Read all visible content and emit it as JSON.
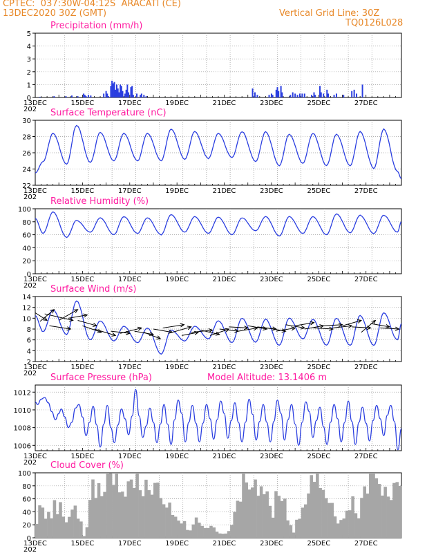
{
  "header": {
    "line1": "CPTEC:  037:30W-04:12S  ARACATI (CE)",
    "line2": "13DEC2020 30Z (GMT)",
    "grid_note": "Vertical Grid Line: 30Z",
    "run_id": "TQ0126L028"
  },
  "colors": {
    "header": "#e8892a",
    "panel_title": "#ff1aa0",
    "series": "#2a3ee0",
    "cloud": "#a6a6a6",
    "grid": "#999999"
  },
  "x_tick_labels": [
    "13DEC",
    "15DEC",
    "17DEC",
    "19DEC",
    "21DEC",
    "23DEC",
    "25DEC",
    "27DEC"
  ],
  "x_corner_label": "202",
  "chart_data": [
    {
      "type": "bar",
      "title": "Precipitation (mm/h)",
      "ylim": [
        0,
        5
      ],
      "y_ticks": [
        0,
        1,
        2,
        3,
        4,
        5
      ],
      "x_range_days": [
        13,
        28.5
      ],
      "bars": [
        [
          13.2,
          0.05
        ],
        [
          13.8,
          0.1
        ],
        [
          14.3,
          0.1
        ],
        [
          14.55,
          0.15
        ],
        [
          14.8,
          0.1
        ],
        [
          15.05,
          0.3
        ],
        [
          15.1,
          0.2
        ],
        [
          15.15,
          0.1
        ],
        [
          15.25,
          0.2
        ],
        [
          15.35,
          0.15
        ],
        [
          15.9,
          0.3
        ],
        [
          16.0,
          0.5
        ],
        [
          16.05,
          0.3
        ],
        [
          16.1,
          0.1
        ],
        [
          16.2,
          0.9
        ],
        [
          16.25,
          1.3
        ],
        [
          16.3,
          1.1
        ],
        [
          16.35,
          1.2
        ],
        [
          16.4,
          0.6
        ],
        [
          16.45,
          1.0
        ],
        [
          16.5,
          0.7
        ],
        [
          16.55,
          0.4
        ],
        [
          16.6,
          1.0
        ],
        [
          16.65,
          0.9
        ],
        [
          16.7,
          0.5
        ],
        [
          16.8,
          0.3
        ],
        [
          16.85,
          0.6
        ],
        [
          16.9,
          1.0
        ],
        [
          16.95,
          0.4
        ],
        [
          17.05,
          0.8
        ],
        [
          17.1,
          0.9
        ],
        [
          17.15,
          0.2
        ],
        [
          17.3,
          0.3
        ],
        [
          17.45,
          0.2
        ],
        [
          17.5,
          0.3
        ],
        [
          17.6,
          0.2
        ],
        [
          17.7,
          0.1
        ],
        [
          22.2,
          0.7
        ],
        [
          22.3,
          0.4
        ],
        [
          22.4,
          0.2
        ],
        [
          22.9,
          0.2
        ],
        [
          23.0,
          0.3
        ],
        [
          23.05,
          0.2
        ],
        [
          23.2,
          0.6
        ],
        [
          23.25,
          0.8
        ],
        [
          23.3,
          0.5
        ],
        [
          23.4,
          0.9
        ],
        [
          23.45,
          0.4
        ],
        [
          23.8,
          0.2
        ],
        [
          23.9,
          0.4
        ],
        [
          24.0,
          0.3
        ],
        [
          24.1,
          0.2
        ],
        [
          24.2,
          0.3
        ],
        [
          24.3,
          0.3
        ],
        [
          24.4,
          0.3
        ],
        [
          24.7,
          0.2
        ],
        [
          24.8,
          0.4
        ],
        [
          24.85,
          0.2
        ],
        [
          25.05,
          0.9
        ],
        [
          25.1,
          0.4
        ],
        [
          25.2,
          0.3
        ],
        [
          25.35,
          0.6
        ],
        [
          25.4,
          0.3
        ],
        [
          25.65,
          0.2
        ],
        [
          25.75,
          0.3
        ],
        [
          26.05,
          0.2
        ],
        [
          26.4,
          0.5
        ],
        [
          26.5,
          0.6
        ],
        [
          26.6,
          0.3
        ],
        [
          26.85,
          1.0
        ]
      ]
    },
    {
      "type": "line",
      "title": "Surface Temperature (nC)",
      "ylim": [
        22,
        30
      ],
      "y_ticks": [
        22,
        24,
        26,
        28,
        30
      ],
      "x_range_days": [
        13,
        28.5
      ],
      "min_start": 23.5,
      "min_end": 22.8,
      "daily_min": [
        24.9,
        24.6,
        24.8,
        25.0,
        25.0,
        25.0,
        25.2,
        25.3,
        25.4,
        24.9,
        24.4,
        24.7,
        24.4,
        24.4,
        24.1,
        23.7
      ],
      "daily_max": [
        28.4,
        29.4,
        28.5,
        28.4,
        28.4,
        28.9,
        28.6,
        28.4,
        28.6,
        28.6,
        28.3,
        28.4,
        28.3,
        28.6,
        28.9,
        28.7
      ]
    },
    {
      "type": "line",
      "title": "Relative Humidity (%)",
      "ylim": [
        0,
        100
      ],
      "y_ticks": [
        0,
        20,
        40,
        60,
        80,
        100
      ],
      "x_range_days": [
        13,
        28.5
      ],
      "min_start": 85,
      "min_end": 80,
      "daily_max": [
        95,
        82,
        86,
        88,
        86,
        91,
        88,
        87,
        86,
        88,
        88,
        88,
        92,
        90,
        90,
        90
      ],
      "daily_min": [
        62,
        56,
        64,
        60,
        62,
        60,
        64,
        62,
        60,
        66,
        58,
        62,
        60,
        63,
        62,
        64
      ]
    },
    {
      "type": "line",
      "title": "Surface Wind (m/s)",
      "ylim": [
        2,
        14
      ],
      "y_ticks": [
        2,
        4,
        6,
        8,
        10,
        12,
        14
      ],
      "x_range_days": [
        13,
        28.5
      ],
      "min_start": 10.5,
      "min_end": 9.0,
      "daily_max": [
        11.5,
        13.2,
        9.5,
        8.5,
        8.2,
        7.8,
        8.5,
        9.5,
        10.0,
        9.8,
        10.0,
        9.8,
        10.0,
        10.5,
        11.0,
        10.8
      ],
      "daily_min": [
        7.5,
        7.0,
        6.0,
        5.8,
        5.5,
        3.4,
        5.8,
        6.2,
        5.5,
        5.6,
        5.0,
        6.2,
        5.0,
        5.0,
        5.0,
        6.0
      ],
      "arrows": [
        [
          13.0,
          11.0,
          13.5,
          9.6
        ],
        [
          13.2,
          9.4,
          13.8,
          11.6
        ],
        [
          13.4,
          10.8,
          14.6,
          9.6
        ],
        [
          13.6,
          8.6,
          14.5,
          8.0
        ],
        [
          14.0,
          9.6,
          14.8,
          11.6
        ],
        [
          14.4,
          10.0,
          15.2,
          10.6
        ],
        [
          14.8,
          9.6,
          15.6,
          8.6
        ],
        [
          15.0,
          8.6,
          15.8,
          7.4
        ],
        [
          15.5,
          8.0,
          16.4,
          6.8
        ],
        [
          16.2,
          7.6,
          17.0,
          7.2
        ],
        [
          16.6,
          7.2,
          17.5,
          8.2
        ],
        [
          17.2,
          7.6,
          18.0,
          7.0
        ],
        [
          17.6,
          7.4,
          18.3,
          6.2
        ],
        [
          18.0,
          8.0,
          18.8,
          7.4
        ],
        [
          18.4,
          8.2,
          19.3,
          8.8
        ],
        [
          18.8,
          7.4,
          19.6,
          8.4
        ],
        [
          19.2,
          6.8,
          19.9,
          7.4
        ],
        [
          19.6,
          7.4,
          20.5,
          7.8
        ],
        [
          20.0,
          7.8,
          20.8,
          7.0
        ],
        [
          20.4,
          6.8,
          21.2,
          8.0
        ],
        [
          20.8,
          8.0,
          21.6,
          7.6
        ],
        [
          21.2,
          8.4,
          22.0,
          8.2
        ],
        [
          21.6,
          7.6,
          22.4,
          8.2
        ],
        [
          22.0,
          8.6,
          22.8,
          8.0
        ],
        [
          22.4,
          8.4,
          23.2,
          8.0
        ],
        [
          22.8,
          8.2,
          23.6,
          7.6
        ],
        [
          23.2,
          7.6,
          24.0,
          8.2
        ],
        [
          23.6,
          8.8,
          24.4,
          8.2
        ],
        [
          24.0,
          8.6,
          24.8,
          9.2
        ],
        [
          24.4,
          8.0,
          25.2,
          8.6
        ],
        [
          24.8,
          8.2,
          25.6,
          8.0
        ],
        [
          25.2,
          8.6,
          26.0,
          8.8
        ],
        [
          25.6,
          8.2,
          26.4,
          8.6
        ],
        [
          26.0,
          8.6,
          26.8,
          9.6
        ],
        [
          26.4,
          8.4,
          27.2,
          8.2
        ],
        [
          26.8,
          7.4,
          27.4,
          9.6
        ],
        [
          27.2,
          9.0,
          28.0,
          8.4
        ],
        [
          27.6,
          8.2,
          28.4,
          8.0
        ]
      ]
    },
    {
      "type": "line",
      "title": "Surface Pressure (hPa)",
      "annotation": "Model Altitude: 13.1406  m",
      "ylim": [
        1005.4,
        1012.8
      ],
      "y_ticks": [
        1006,
        1008,
        1010,
        1012
      ],
      "x_range_days": [
        13,
        28.5
      ],
      "values": [
        [
          13.0,
          1010.9
        ],
        [
          13.1,
          1010.6
        ],
        [
          13.25,
          1011.2
        ],
        [
          13.4,
          1011.4
        ],
        [
          13.55,
          1010.8
        ],
        [
          13.7,
          1009.8
        ],
        [
          13.85,
          1008.9
        ],
        [
          14.0,
          1009.6
        ],
        [
          14.1,
          1010.1
        ],
        [
          14.25,
          1009.2
        ],
        [
          14.4,
          1008.0
        ],
        [
          14.55,
          1008.6
        ],
        [
          14.7,
          1010.2
        ],
        [
          14.85,
          1010.6
        ],
        [
          15.0,
          1009.2
        ],
        [
          15.15,
          1007.1
        ],
        [
          15.3,
          1008.6
        ],
        [
          15.45,
          1010.4
        ],
        [
          15.6,
          1008.3
        ],
        [
          15.75,
          1005.8
        ],
        [
          15.9,
          1008.4
        ],
        [
          16.05,
          1010.5
        ],
        [
          16.2,
          1008.0
        ],
        [
          16.35,
          1006.3
        ],
        [
          16.5,
          1008.3
        ],
        [
          16.65,
          1010.1
        ],
        [
          16.8,
          1009.0
        ],
        [
          16.95,
          1007.2
        ],
        [
          17.1,
          1009.3
        ],
        [
          17.25,
          1012.3
        ],
        [
          17.4,
          1009.3
        ],
        [
          17.55,
          1006.9
        ],
        [
          17.7,
          1008.2
        ],
        [
          17.85,
          1010.2
        ],
        [
          18.0,
          1008.6
        ],
        [
          18.15,
          1006.3
        ],
        [
          18.3,
          1008.4
        ],
        [
          18.45,
          1010.6
        ],
        [
          18.6,
          1008.4
        ],
        [
          18.75,
          1006.1
        ],
        [
          18.9,
          1008.9
        ],
        [
          19.05,
          1011.1
        ],
        [
          19.2,
          1009.6
        ],
        [
          19.35,
          1006.4
        ],
        [
          19.5,
          1008.6
        ],
        [
          19.65,
          1010.5
        ],
        [
          19.8,
          1008.5
        ],
        [
          19.95,
          1006.4
        ],
        [
          20.1,
          1008.5
        ],
        [
          20.25,
          1010.6
        ],
        [
          20.4,
          1009.0
        ],
        [
          20.55,
          1006.7
        ],
        [
          20.7,
          1008.9
        ],
        [
          20.85,
          1011.0
        ],
        [
          21.0,
          1009.6
        ],
        [
          21.15,
          1006.8
        ],
        [
          21.3,
          1008.8
        ],
        [
          21.45,
          1010.8
        ],
        [
          21.6,
          1008.6
        ],
        [
          21.75,
          1006.4
        ],
        [
          21.9,
          1008.6
        ],
        [
          22.05,
          1011.2
        ],
        [
          22.2,
          1009.5
        ],
        [
          22.35,
          1006.6
        ],
        [
          22.5,
          1008.7
        ],
        [
          22.65,
          1010.6
        ],
        [
          22.8,
          1008.6
        ],
        [
          22.95,
          1006.4
        ],
        [
          23.1,
          1008.7
        ],
        [
          23.25,
          1011.1
        ],
        [
          23.4,
          1009.6
        ],
        [
          23.55,
          1006.6
        ],
        [
          23.7,
          1008.9
        ],
        [
          23.85,
          1010.6
        ],
        [
          24.0,
          1008.4
        ],
        [
          24.15,
          1006.0
        ],
        [
          24.3,
          1008.6
        ],
        [
          24.45,
          1010.9
        ],
        [
          24.6,
          1009.8
        ],
        [
          24.75,
          1006.9
        ],
        [
          24.9,
          1008.8
        ],
        [
          25.05,
          1010.3
        ],
        [
          25.2,
          1008.1
        ],
        [
          25.35,
          1006.1
        ],
        [
          25.5,
          1008.6
        ],
        [
          25.65,
          1010.6
        ],
        [
          25.8,
          1009.0
        ],
        [
          25.95,
          1006.4
        ],
        [
          26.1,
          1008.6
        ],
        [
          26.25,
          1011.0
        ],
        [
          26.4,
          1008.7
        ],
        [
          26.55,
          1006.1
        ],
        [
          26.7,
          1008.6
        ],
        [
          26.85,
          1010.3
        ],
        [
          27.0,
          1008.5
        ],
        [
          27.15,
          1006.5
        ],
        [
          27.3,
          1008.8
        ],
        [
          27.45,
          1010.5
        ],
        [
          27.6,
          1009.0
        ],
        [
          27.75,
          1007.1
        ],
        [
          27.9,
          1009.4
        ],
        [
          28.05,
          1010.5
        ],
        [
          28.2,
          1008.7
        ],
        [
          28.35,
          1005.5
        ],
        [
          28.5,
          1007.9
        ]
      ]
    },
    {
      "type": "bar",
      "title": "Cloud Cover (%)",
      "ylim": [
        0,
        100
      ],
      "y_ticks": [
        0,
        20,
        40,
        60,
        80,
        100
      ],
      "x_range_days": [
        13,
        28.5
      ],
      "profile": [
        [
          13.0,
          20
        ],
        [
          13.2,
          60
        ],
        [
          13.5,
          40
        ],
        [
          13.8,
          55
        ],
        [
          14.0,
          60
        ],
        [
          14.3,
          30
        ],
        [
          14.6,
          45
        ],
        [
          14.9,
          20
        ],
        [
          15.0,
          3
        ],
        [
          15.2,
          20
        ],
        [
          15.3,
          100
        ],
        [
          15.6,
          90
        ],
        [
          16.0,
          100
        ],
        [
          16.4,
          95
        ],
        [
          16.8,
          100
        ],
        [
          17.2,
          95
        ],
        [
          17.6,
          100
        ],
        [
          18.0,
          90
        ],
        [
          18.4,
          80
        ],
        [
          18.7,
          60
        ],
        [
          18.9,
          40
        ],
        [
          19.2,
          25
        ],
        [
          19.5,
          15
        ],
        [
          19.8,
          35
        ],
        [
          20.1,
          20
        ],
        [
          20.4,
          15
        ],
        [
          20.7,
          10
        ],
        [
          21.0,
          8
        ],
        [
          21.2,
          20
        ],
        [
          21.5,
          60
        ],
        [
          21.8,
          100
        ],
        [
          22.1,
          90
        ],
        [
          22.4,
          95
        ],
        [
          22.7,
          60
        ],
        [
          23.0,
          50
        ],
        [
          23.3,
          80
        ],
        [
          23.6,
          30
        ],
        [
          23.9,
          10
        ],
        [
          24.2,
          50
        ],
        [
          24.5,
          70
        ],
        [
          24.8,
          100
        ],
        [
          25.1,
          90
        ],
        [
          25.4,
          60
        ],
        [
          25.7,
          30
        ],
        [
          26.0,
          35
        ],
        [
          26.3,
          60
        ],
        [
          26.6,
          40
        ],
        [
          26.9,
          90
        ],
        [
          27.2,
          100
        ],
        [
          27.5,
          95
        ],
        [
          27.8,
          80
        ],
        [
          28.1,
          85
        ],
        [
          28.5,
          88
        ]
      ]
    }
  ]
}
